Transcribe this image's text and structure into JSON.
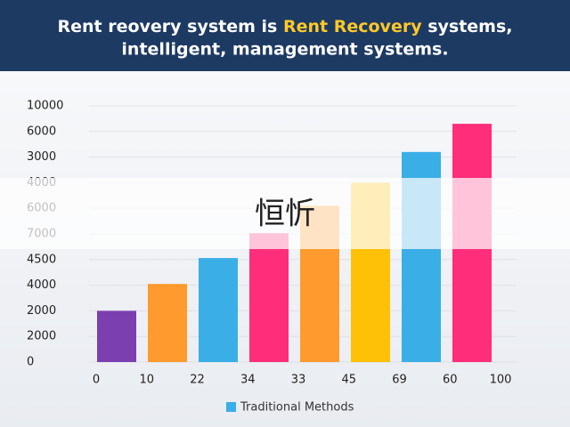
{
  "chart_data": {
    "type": "bar",
    "title": {
      "line1_prefix": "Rent reovery system is ",
      "highlight": "Rent Recovery",
      "line1_suffix": " systems,",
      "line2": "intelligent, management systems."
    },
    "overlay_text": "恒忻",
    "y_labels": [
      "0",
      "2000",
      "2000",
      "4000",
      "4500",
      "7000",
      "6000",
      "4000",
      "3000",
      "6000",
      "10000"
    ],
    "x_labels": [
      "0",
      "10",
      "22",
      "34",
      "33",
      "45",
      "69",
      "60",
      "100"
    ],
    "values": [
      2,
      3.05,
      4.06,
      5.03,
      6.1,
      7,
      8.2,
      9.3
    ],
    "colors": [
      "#7b3fb0",
      "#ff9a2e",
      "#3aaee6",
      "#ff2d7a",
      "#ff9a2e",
      "#ffc107",
      "#3aaee6",
      "#ff2d7a"
    ],
    "ylim": [
      0,
      10
    ],
    "yticks": [
      0,
      1,
      2,
      3,
      4,
      5,
      6,
      7,
      8,
      9,
      10
    ],
    "grid": true,
    "legend": {
      "label": "Traditional Methods",
      "color": "#3aaee6"
    }
  }
}
